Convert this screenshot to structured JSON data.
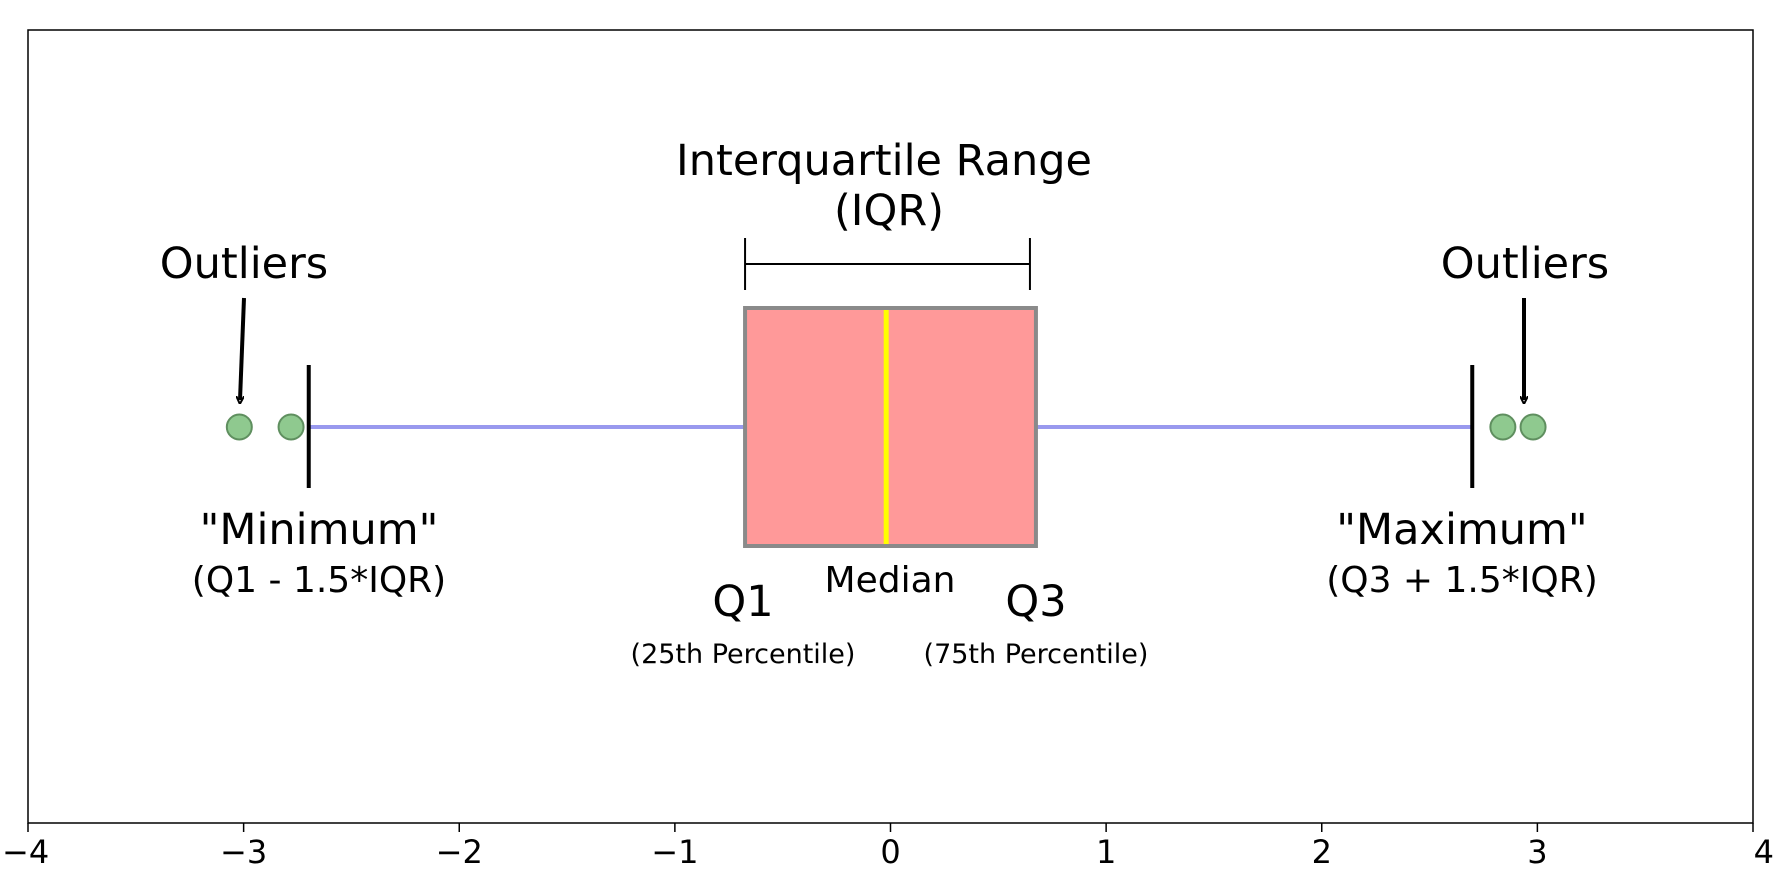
{
  "chart_data": {
    "type": "box",
    "xlim": [
      -4,
      4
    ],
    "xticks": [
      -4,
      -3,
      -2,
      -1,
      0,
      1,
      2,
      3,
      4
    ],
    "xtick_labels": [
      "−4",
      "−3",
      "−2",
      "−1",
      "0",
      "1",
      "2",
      "3",
      "4"
    ],
    "grid": false,
    "box": {
      "q1": -0.6745,
      "median": -0.02,
      "q3": 0.6745,
      "whisker_low": -2.698,
      "whisker_high": 2.698
    },
    "outliers": [
      -3.02,
      -2.78,
      2.84,
      2.98
    ],
    "colors": {
      "box_fill": "#ff9999",
      "box_edge": "#8a8a8a",
      "median": "#ffff00",
      "whisker": "#9999ee",
      "outlier_fill": "#8fc98f",
      "outlier_edge": "#5f8f5f"
    },
    "annotations": {
      "iqr_title": "Interquartile Range",
      "iqr_abbrev": "(IQR)",
      "outliers_left": "Outliers",
      "outliers_right": "Outliers",
      "minimum_label": "\"Minimum\"",
      "minimum_formula": "(Q1 - 1.5*IQR)",
      "maximum_label": "\"Maximum\"",
      "maximum_formula": "(Q3 + 1.5*IQR)",
      "median_label": "Median",
      "q1_label": "Q1",
      "q1_sub": "(25th Percentile)",
      "q3_label": "Q3",
      "q3_sub": "(75th Percentile)"
    }
  }
}
